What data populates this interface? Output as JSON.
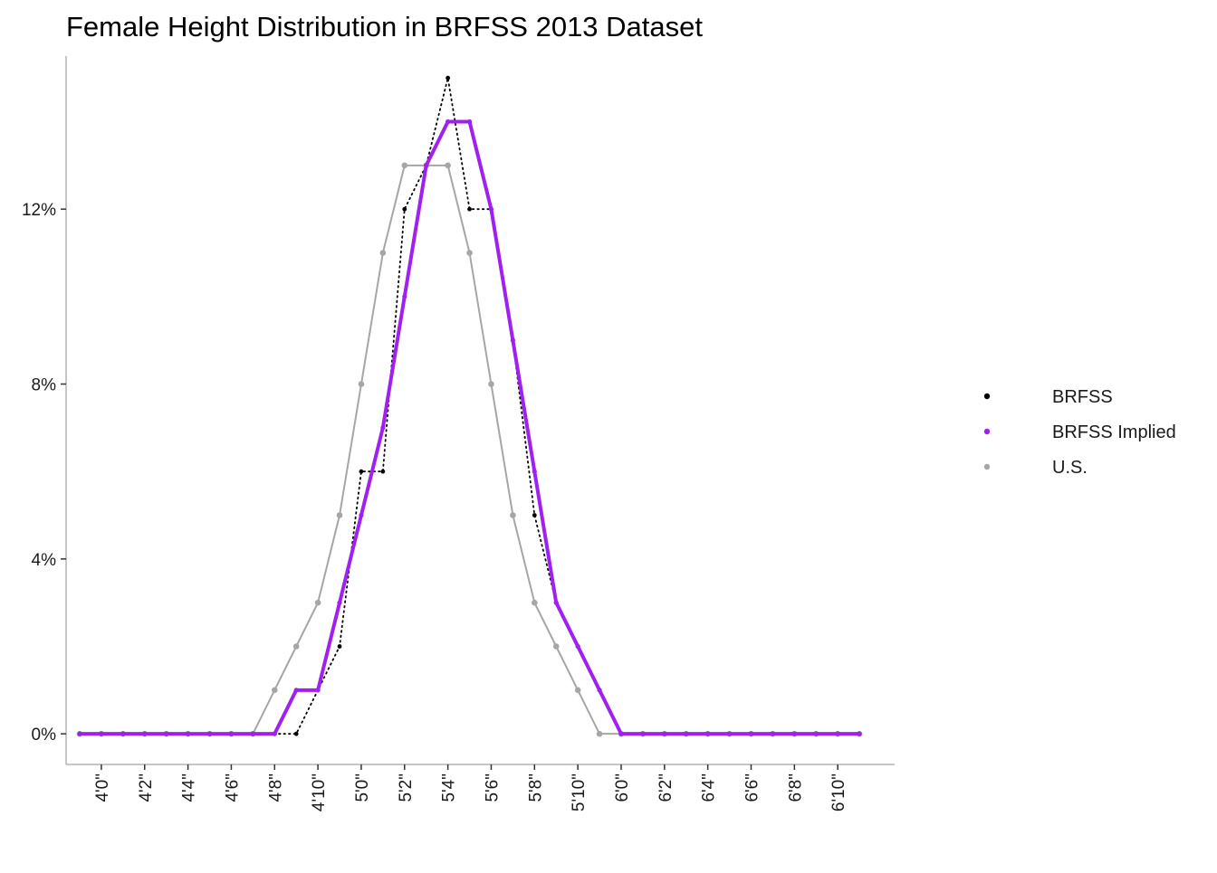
{
  "chart_data": {
    "type": "line",
    "title": "Female Height Distribution in BRFSS 2013 Dataset",
    "xlabel": "",
    "ylabel": "",
    "x_unit": "inches",
    "x_range": [
      47,
      84
    ],
    "ylim": [
      -0.7,
      15.5
    ],
    "y_ticks": [
      {
        "value": 0,
        "label": "0%"
      },
      {
        "value": 4,
        "label": "4%"
      },
      {
        "value": 8,
        "label": "8%"
      },
      {
        "value": 12,
        "label": "12%"
      }
    ],
    "x_ticks": [
      {
        "value": 48,
        "label": "4'0\""
      },
      {
        "value": 50,
        "label": "4'2\""
      },
      {
        "value": 52,
        "label": "4'4\""
      },
      {
        "value": 54,
        "label": "4'6\""
      },
      {
        "value": 56,
        "label": "4'8\""
      },
      {
        "value": 58,
        "label": "4'10\""
      },
      {
        "value": 60,
        "label": "5'0\""
      },
      {
        "value": 62,
        "label": "5'2\""
      },
      {
        "value": 64,
        "label": "5'4\""
      },
      {
        "value": 66,
        "label": "5'6\""
      },
      {
        "value": 68,
        "label": "5'8\""
      },
      {
        "value": 70,
        "label": "5'10\""
      },
      {
        "value": 72,
        "label": "6'0\""
      },
      {
        "value": 74,
        "label": "6'2\""
      },
      {
        "value": 76,
        "label": "6'4\""
      },
      {
        "value": 78,
        "label": "6'6\""
      },
      {
        "value": 80,
        "label": "6'8\""
      },
      {
        "value": 82,
        "label": "6'10\""
      }
    ],
    "x": [
      47,
      48,
      49,
      50,
      51,
      52,
      53,
      54,
      55,
      56,
      57,
      58,
      59,
      60,
      61,
      62,
      63,
      64,
      65,
      66,
      67,
      68,
      69,
      70,
      71,
      72,
      73,
      74,
      75,
      76,
      77,
      78,
      79,
      80,
      81,
      82,
      83
    ],
    "series": [
      {
        "name": "BRFSS",
        "color": "#000000",
        "style": "dotted",
        "values": [
          0,
          0,
          0,
          0,
          0,
          0,
          0,
          0,
          0,
          0,
          0,
          1,
          2,
          6,
          6,
          12,
          13,
          15,
          12,
          12,
          9,
          5,
          3,
          2,
          1,
          0,
          0,
          0,
          0,
          0,
          0,
          0,
          0,
          0,
          0,
          0,
          0
        ]
      },
      {
        "name": "BRFSS Implied",
        "color": "#a020f0",
        "style": "thick",
        "values": [
          0,
          0,
          0,
          0,
          0,
          0,
          0,
          0,
          0,
          0,
          1,
          1,
          3,
          5,
          7,
          10,
          13,
          14,
          14,
          12,
          9,
          6,
          3,
          2,
          1,
          0,
          0,
          0,
          0,
          0,
          0,
          0,
          0,
          0,
          0,
          0,
          0
        ]
      },
      {
        "name": "U.S.",
        "color": "#a6a6a6",
        "style": "solid",
        "values": [
          0,
          0,
          0,
          0,
          0,
          0,
          0,
          0,
          0,
          1,
          2,
          3,
          5,
          8,
          11,
          13,
          13,
          13,
          11,
          8,
          5,
          3,
          2,
          1,
          0,
          0,
          0,
          0,
          0,
          0,
          0,
          0,
          0,
          0,
          0,
          0,
          0
        ]
      }
    ],
    "legend": {
      "position": "right",
      "entries": [
        "BRFSS",
        "BRFSS Implied",
        "U.S."
      ]
    },
    "grid": false
  }
}
